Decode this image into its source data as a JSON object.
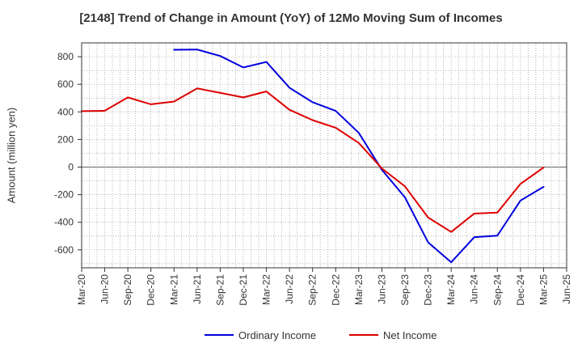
{
  "chart_data": {
    "type": "line",
    "title": "[2148]  Trend of Change in Amount (YoY) of 12Mo Moving Sum of Incomes",
    "xlabel": "",
    "ylabel": "Amount (million yen)",
    "x": [
      "Mar-20",
      "Jun-20",
      "Sep-20",
      "Dec-20",
      "Mar-21",
      "Jun-21",
      "Sep-21",
      "Dec-21",
      "Mar-22",
      "Jun-22",
      "Sep-22",
      "Dec-22",
      "Mar-23",
      "Jun-23",
      "Sep-23",
      "Dec-23",
      "Mar-24",
      "Jun-24",
      "Sep-24",
      "Dec-24",
      "Mar-25",
      "Jun-25"
    ],
    "ylim": [
      -730,
      900
    ],
    "yticks": [
      -600,
      -400,
      -200,
      0,
      200,
      400,
      600,
      800
    ],
    "grid": true,
    "legend_position": "bottom",
    "series": [
      {
        "name": "Ordinary Income",
        "color": "#0000dd",
        "values": [
          null,
          null,
          null,
          null,
          850,
          852,
          805,
          722,
          762,
          575,
          470,
          407,
          248,
          -20,
          -220,
          -545,
          -690,
          -508,
          -497,
          -243,
          -143,
          null
        ]
      },
      {
        "name": "Net Income",
        "color": "#dd0000",
        "values": [
          405,
          408,
          505,
          455,
          475,
          570,
          538,
          505,
          548,
          415,
          340,
          285,
          175,
          -10,
          -140,
          -365,
          -470,
          -337,
          -330,
          -122,
          -3,
          null
        ]
      }
    ]
  }
}
